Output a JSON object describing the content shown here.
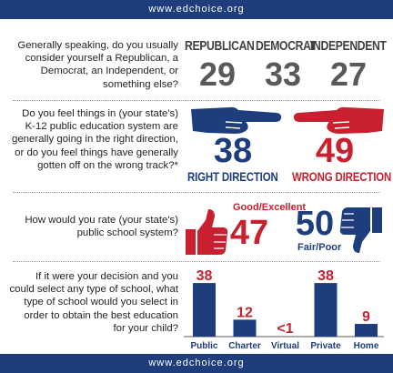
{
  "header": {
    "url": "www.edchoice.org"
  },
  "footer": {
    "url": "www.edchoice.org"
  },
  "party": {
    "question": "Generally speaking, do you usually consider yourself a Republican, a Democrat, an Independent, or something else?",
    "items": [
      {
        "label": "REPUBLICAN",
        "value": "29"
      },
      {
        "label": "DEMOCRAT",
        "value": "33"
      },
      {
        "label": "INDEPENDENT",
        "value": "27"
      }
    ]
  },
  "direction": {
    "question": "Do you feel things in (your state's) K-12 public education system are generally going in the right direction, or do you feel things have generally gotten off on the wrong track?*",
    "right": {
      "label": "RIGHT DIRECTION",
      "value": "38"
    },
    "wrong": {
      "label": "WRONG DIRECTION",
      "value": "49"
    },
    "colors": {
      "right": "#1d3d7c",
      "wrong": "#c8202e"
    }
  },
  "rating": {
    "question": "How would you rate (your state's) public school system?",
    "good": {
      "label": "Good/Excellent",
      "value": "47"
    },
    "fair": {
      "label": "Fair/Poor",
      "value": "50"
    }
  },
  "chart_data": {
    "type": "bar",
    "question": "If it were your decision and you could select any type of school, what type of school would you select in order to obtain the best education for your child?",
    "categories": [
      "Public",
      "Charter",
      "Virtual",
      "Private",
      "Home"
    ],
    "values": [
      38,
      12,
      0.5,
      38,
      9
    ],
    "labels": [
      "38",
      "12",
      "<1",
      "38",
      "9"
    ],
    "ylim": [
      0,
      40
    ],
    "bar_color": "#1d3d7c",
    "label_color": "#c8202e"
  }
}
